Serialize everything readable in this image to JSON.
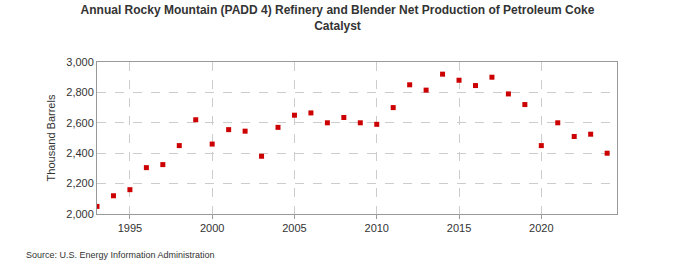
{
  "chart_data": {
    "type": "scatter",
    "title": "Annual Rocky Mountain (PADD 4) Refinery and Blender Net Production of Petroleum Coke\nCatalyst",
    "y_label": "Thousand Barrels",
    "source": "Source: U.S. Energy Information Administration",
    "x": [
      1993,
      1994,
      1995,
      1996,
      1997,
      1998,
      1999,
      2000,
      2001,
      2002,
      2003,
      2004,
      2005,
      2006,
      2007,
      2008,
      2009,
      2010,
      2011,
      2012,
      2013,
      2014,
      2015,
      2016,
      2017,
      2018,
      2019,
      2020,
      2021,
      2022,
      2023,
      2024
    ],
    "values": [
      2050,
      2120,
      2160,
      2305,
      2325,
      2450,
      2620,
      2460,
      2555,
      2545,
      2380,
      2570,
      2650,
      2665,
      2600,
      2635,
      2600,
      2590,
      2700,
      2850,
      2815,
      2920,
      2880,
      2845,
      2900,
      2790,
      2720,
      2450,
      2600,
      2510,
      2525,
      2400
    ],
    "color": "#cc0000",
    "marker": "square",
    "xlim": [
      1993,
      2024.6
    ],
    "xticks": [
      1995,
      2000,
      2005,
      2010,
      2015,
      2020
    ],
    "ylim": [
      2000,
      3000
    ],
    "yticks": [
      {
        "value": 2000,
        "label": "2,000"
      },
      {
        "value": 2200,
        "label": "2,200"
      },
      {
        "value": 2400,
        "label": "2,400"
      },
      {
        "value": 2600,
        "label": "2,600"
      },
      {
        "value": 2800,
        "label": "2,800"
      },
      {
        "value": 3000,
        "label": "3,000"
      }
    ],
    "grid": true
  }
}
